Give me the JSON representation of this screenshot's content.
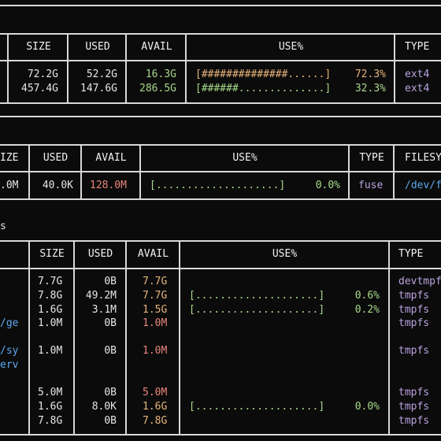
{
  "colors": {
    "background": "#0b0b0b",
    "border": "#d8d8d8",
    "text": "#e6e6e6",
    "avail_ok": "#a8d98a",
    "avail_low": "#e8867a",
    "use_high": "#e9b47a",
    "type": "#b9a3e0",
    "mount": "#59a8f0"
  },
  "table1": {
    "headers": {
      "size": "SIZE",
      "used": "USED",
      "avail": "AVAIL",
      "use": "USE%",
      "type": "TYPE"
    },
    "rows": [
      {
        "size": "72.2G",
        "used": "52.2G",
        "avail": "16.3G",
        "bar": "[##############......]",
        "pct": "72.3%",
        "type": "ext4"
      },
      {
        "size": "457.4G",
        "used": "147.6G",
        "avail": "286.5G",
        "bar": "[######..............]",
        "pct": "32.3%",
        "type": "ext4"
      }
    ]
  },
  "table2": {
    "headers": {
      "size": "IZE",
      "used": "USED",
      "avail": "AVAIL",
      "use": "USE%",
      "type": "TYPE",
      "filesystem": "FILESY"
    },
    "rows": [
      {
        "size": ".0M",
        "used": "40.0K",
        "avail": "128.0M",
        "bar": "[....................]",
        "pct": "0.0%",
        "type": "fuse",
        "filesystem": "/dev/f"
      }
    ]
  },
  "table3": {
    "title": "s",
    "headers": {
      "size": "SIZE",
      "used": "USED",
      "avail": "AVAIL",
      "use": "USE%",
      "type": "TYPE"
    },
    "mounts": [
      "/ge",
      "/sy",
      "erv"
    ],
    "rows": [
      {
        "size": "7.7G",
        "used": "0B",
        "avail": "7.7G",
        "bar": "",
        "pct": "",
        "type": "devtmpf"
      },
      {
        "size": "7.8G",
        "used": "49.2M",
        "avail": "7.7G",
        "bar": "[....................]",
        "pct": "0.6%",
        "type": "tmpfs"
      },
      {
        "size": "1.6G",
        "used": "3.1M",
        "avail": "1.5G",
        "bar": "[....................]",
        "pct": "0.2%",
        "type": "tmpfs"
      },
      {
        "size": "1.0M",
        "used": "0B",
        "avail": "1.0M",
        "bar": "",
        "pct": "",
        "type": "tmpfs"
      },
      {
        "size": "1.0M",
        "used": "0B",
        "avail": "1.0M",
        "bar": "",
        "pct": "",
        "type": "tmpfs"
      },
      {
        "size": "5.0M",
        "used": "0B",
        "avail": "5.0M",
        "bar": "",
        "pct": "",
        "type": "tmpfs"
      },
      {
        "size": "1.6G",
        "used": "8.0K",
        "avail": "1.6G",
        "bar": "[....................]",
        "pct": "0.0%",
        "type": "tmpfs"
      },
      {
        "size": "7.8G",
        "used": "0B",
        "avail": "7.8G",
        "bar": "",
        "pct": "",
        "type": "tmpfs"
      }
    ]
  }
}
